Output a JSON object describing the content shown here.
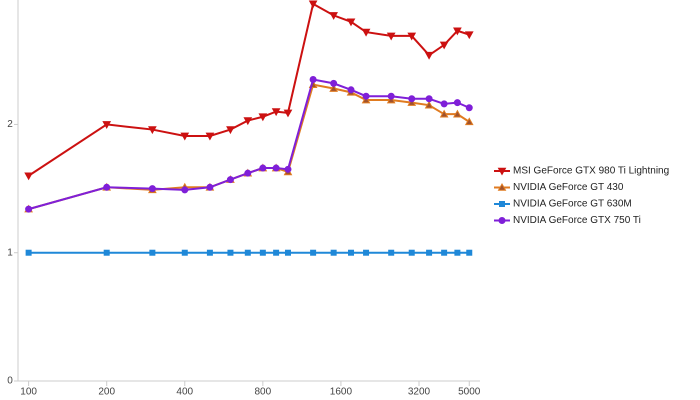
{
  "chart_data": {
    "type": "line",
    "xscale": "log",
    "x": [
      100,
      200,
      300,
      400,
      500,
      600,
      700,
      800,
      900,
      1000,
      1250,
      1500,
      1750,
      2000,
      2500,
      3000,
      3500,
      4000,
      4500,
      5000
    ],
    "xlim": [
      91,
      5500
    ],
    "xticks": [
      100,
      200,
      400,
      800,
      1600,
      3200,
      5000
    ],
    "ylim": [
      0,
      2.97
    ],
    "yticks": [
      0,
      1,
      2
    ],
    "legend": "right",
    "series": [
      {
        "name": "MSI GeForce GTX 980 Ti Lightning",
        "color": "#cc1111",
        "marker": "triangle-down",
        "values": [
          1.6,
          2.0,
          1.96,
          1.91,
          1.91,
          1.96,
          2.03,
          2.06,
          2.1,
          2.09,
          2.94,
          2.85,
          2.8,
          2.72,
          2.69,
          2.69,
          2.54,
          2.62,
          2.73,
          2.7
        ]
      },
      {
        "name": "NVIDIA GeForce GT 430",
        "color": "#e07b20",
        "marker": "triangle-up",
        "values": [
          1.34,
          1.51,
          1.49,
          1.51,
          1.51,
          1.57,
          1.62,
          1.66,
          1.66,
          1.63,
          2.31,
          2.28,
          2.25,
          2.19,
          2.19,
          2.17,
          2.15,
          2.08,
          2.08,
          2.02
        ]
      },
      {
        "name": "NVIDIA GeForce GT 630M",
        "color": "#1f88d8",
        "marker": "square",
        "values": [
          1,
          1,
          1,
          1,
          1,
          1,
          1,
          1,
          1,
          1,
          1,
          1,
          1,
          1,
          1,
          1,
          1,
          1,
          1,
          1
        ]
      },
      {
        "name": "NVIDIA GeForce GTX 750 Ti",
        "color": "#7f1fd8",
        "marker": "circle",
        "values": [
          1.34,
          1.51,
          1.5,
          1.49,
          1.51,
          1.57,
          1.62,
          1.66,
          1.66,
          1.65,
          2.35,
          2.32,
          2.27,
          2.22,
          2.22,
          2.2,
          2.2,
          2.16,
          2.17,
          2.13
        ]
      }
    ]
  }
}
